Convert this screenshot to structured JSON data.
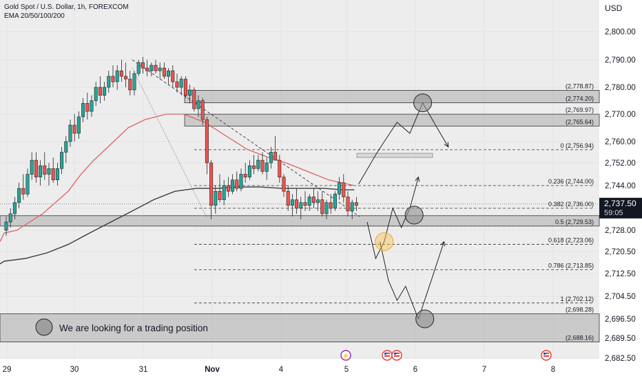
{
  "header": {
    "symbol": "Gold Spot / U.S. Dollar, 1h, FOREXCOM",
    "indicator": "EMA 20/50/100/200"
  },
  "price_axis": {
    "currency": "USD",
    "current_price": "2,737.50",
    "countdown": "59:05"
  },
  "colors": {
    "background": "#ffffff",
    "plot_bg": "#ededed",
    "bull": "#26a69a",
    "bear": "#ef5350",
    "ema_fast": "#e06060",
    "ema_slow": "#3a3a3a",
    "zone": "#bdbdbd",
    "highlight": "#f6c451"
  },
  "annotations": {
    "note": "We are looking for a trading position"
  },
  "chart_data": {
    "type": "candlestick",
    "title": "Gold Spot / U.S. Dollar, 1h, FOREXCOM",
    "x_tick_labels": [
      "29",
      "30",
      "31",
      "Nov",
      "4",
      "5",
      "6",
      "7",
      "8"
    ],
    "y_ticks": [
      2682.5,
      2689.5,
      2696.5,
      2704.5,
      2712.5,
      2720.5,
      2728.0,
      2736.0,
      2744.0,
      2752.0,
      2760.0,
      2770.0,
      2780.0,
      2790.0,
      2800.0
    ],
    "y_tick_labels": [
      "2,682.50",
      "2,689.50",
      "2,696.50",
      "2,704.50",
      "2,712.50",
      "2,720.50",
      "2,728.00",
      "2,736.00",
      "2,744.00",
      "2,752.00",
      "2,760.00",
      "2,770.00",
      "2,780.00",
      "2,790.00",
      "2,800.00"
    ],
    "ylim": [
      2680,
      2806
    ],
    "current_price": 2737.5,
    "level_labels": [
      {
        "text": "(2,778.87)",
        "price": 2778.87
      },
      {
        "text": "(2,774.20)",
        "price": 2774.2
      },
      {
        "text": "(2,769.97)",
        "price": 2769.97
      },
      {
        "text": "(2,765.64)",
        "price": 2765.64
      },
      {
        "text": "0 (2,756.94)",
        "price": 2756.94
      },
      {
        "text": "0.236 (2,744.00)",
        "price": 2744.0
      },
      {
        "text": "0.382 (2,736.00)",
        "price": 2736.0
      },
      {
        "text": "0.5 (2,729.53)",
        "price": 2729.53
      },
      {
        "text": "0.618 (2,723.06)",
        "price": 2723.06
      },
      {
        "text": "0.786 (2,713.85)",
        "price": 2713.85
      },
      {
        "text": "1 (2,702.12)",
        "price": 2702.12
      },
      {
        "text": "(2,698.28)",
        "price": 2698.28
      },
      {
        "text": "(2,688.16)",
        "price": 2688.16
      }
    ],
    "zones": [
      {
        "from": 2774.2,
        "to": 2778.87
      },
      {
        "from": 2765.64,
        "to": 2769.97
      },
      {
        "from": 2729.53,
        "to": 2733.3
      },
      {
        "from": 2688.16,
        "to": 2698.28
      }
    ],
    "candles": [
      [
        2728,
        2733,
        2726,
        2731
      ],
      [
        2731,
        2736,
        2729,
        2734
      ],
      [
        2734,
        2740,
        2732,
        2738
      ],
      [
        2738,
        2745,
        2736,
        2743
      ],
      [
        2743,
        2748,
        2739,
        2741
      ],
      [
        2741,
        2750,
        2740,
        2748
      ],
      [
        2748,
        2756,
        2746,
        2753
      ],
      [
        2753,
        2756,
        2745,
        2747
      ],
      [
        2747,
        2753,
        2744,
        2751
      ],
      [
        2751,
        2756,
        2746,
        2748
      ],
      [
        2748,
        2752,
        2744,
        2750
      ],
      [
        2750,
        2754,
        2745,
        2746
      ],
      [
        2746,
        2752,
        2744,
        2750
      ],
      [
        2750,
        2758,
        2748,
        2756
      ],
      [
        2756,
        2762,
        2752,
        2760
      ],
      [
        2760,
        2768,
        2758,
        2766
      ],
      [
        2766,
        2770,
        2760,
        2763
      ],
      [
        2763,
        2771,
        2761,
        2769
      ],
      [
        2769,
        2776,
        2767,
        2774
      ],
      [
        2774,
        2778,
        2768,
        2771
      ],
      [
        2771,
        2777,
        2769,
        2775
      ],
      [
        2775,
        2782,
        2773,
        2780
      ],
      [
        2780,
        2784,
        2774,
        2777
      ],
      [
        2777,
        2782,
        2775,
        2780
      ],
      [
        2780,
        2786,
        2778,
        2784
      ],
      [
        2784,
        2788,
        2780,
        2782
      ],
      [
        2782,
        2788,
        2779,
        2786
      ],
      [
        2786,
        2790,
        2782,
        2784
      ],
      [
        2784,
        2789,
        2780,
        2783
      ],
      [
        2783,
        2786,
        2777,
        2779
      ],
      [
        2779,
        2786,
        2777,
        2785
      ],
      [
        2785,
        2790,
        2784,
        2789
      ],
      [
        2789,
        2791,
        2785,
        2787
      ],
      [
        2787,
        2790,
        2784,
        2786
      ],
      [
        2786,
        2789,
        2784,
        2788
      ],
      [
        2788,
        2790,
        2785,
        2786
      ],
      [
        2786,
        2789,
        2783,
        2787
      ],
      [
        2787,
        2789,
        2783,
        2784
      ],
      [
        2784,
        2787,
        2781,
        2786
      ],
      [
        2786,
        2788,
        2780,
        2782
      ],
      [
        2782,
        2785,
        2778,
        2780
      ],
      [
        2780,
        2784,
        2777,
        2783
      ],
      [
        2783,
        2784,
        2776,
        2777
      ],
      [
        2777,
        2781,
        2774,
        2779
      ],
      [
        2779,
        2780,
        2771,
        2772
      ],
      [
        2772,
        2777,
        2769,
        2775
      ],
      [
        2775,
        2776,
        2766,
        2768
      ],
      [
        2768,
        2769,
        2748,
        2752
      ],
      [
        2752,
        2753,
        2732,
        2737
      ],
      [
        2737,
        2744,
        2734,
        2742
      ],
      [
        2742,
        2748,
        2738,
        2739
      ],
      [
        2739,
        2746,
        2737,
        2744
      ],
      [
        2744,
        2747,
        2740,
        2742
      ],
      [
        2742,
        2748,
        2741,
        2746
      ],
      [
        2746,
        2749,
        2742,
        2743
      ],
      [
        2743,
        2750,
        2742,
        2748
      ],
      [
        2748,
        2752,
        2745,
        2747
      ],
      [
        2747,
        2753,
        2746,
        2751
      ],
      [
        2751,
        2755,
        2748,
        2750
      ],
      [
        2750,
        2755,
        2749,
        2753
      ],
      [
        2753,
        2756,
        2748,
        2749
      ],
      [
        2749,
        2754,
        2746,
        2752
      ],
      [
        2752,
        2758,
        2750,
        2756
      ],
      [
        2756,
        2762,
        2754,
        2753
      ],
      [
        2753,
        2755,
        2745,
        2747
      ],
      [
        2747,
        2748,
        2740,
        2742
      ],
      [
        2742,
        2744,
        2735,
        2737
      ],
      [
        2737,
        2741,
        2733,
        2739
      ],
      [
        2739,
        2743,
        2734,
        2736
      ],
      [
        2736,
        2740,
        2732,
        2738
      ],
      [
        2738,
        2742,
        2735,
        2737
      ],
      [
        2737,
        2741,
        2735,
        2740
      ],
      [
        2740,
        2743,
        2736,
        2738
      ],
      [
        2738,
        2742,
        2735,
        2739
      ],
      [
        2739,
        2742,
        2733,
        2734
      ],
      [
        2734,
        2739,
        2732,
        2738
      ],
      [
        2738,
        2741,
        2734,
        2736
      ],
      [
        2736,
        2742,
        2735,
        2741
      ],
      [
        2741,
        2747,
        2739,
        2745
      ],
      [
        2745,
        2748,
        2738,
        2740
      ],
      [
        2740,
        2742,
        2733,
        2735
      ],
      [
        2735,
        2739,
        2732,
        2738
      ],
      [
        2738,
        2740,
        2735,
        2737
      ]
    ],
    "ema_fast": [
      [
        2727,
        0
      ],
      [
        2728,
        3
      ],
      [
        2731,
        6
      ],
      [
        2734,
        9
      ],
      [
        2738,
        12
      ],
      [
        2742,
        15
      ],
      [
        2748,
        18
      ],
      [
        2753,
        21
      ],
      [
        2759,
        25
      ],
      [
        2765,
        29
      ],
      [
        2768,
        33
      ],
      [
        2770,
        38
      ],
      [
        2770,
        42
      ],
      [
        2767,
        47
      ],
      [
        2762,
        52
      ],
      [
        2757,
        57
      ],
      [
        2754,
        62
      ],
      [
        2752,
        66
      ],
      [
        2749,
        71
      ],
      [
        2746,
        76
      ],
      [
        2745,
        79
      ],
      [
        2744,
        82
      ]
    ],
    "ema_slow": [
      [
        2717,
        0
      ],
      [
        2718,
        5
      ],
      [
        2720,
        10
      ],
      [
        2723,
        15
      ],
      [
        2727,
        20
      ],
      [
        2731,
        25
      ],
      [
        2735,
        30
      ],
      [
        2739,
        35
      ],
      [
        2742,
        40
      ],
      [
        2743,
        45
      ],
      [
        2743,
        50
      ],
      [
        2743.5,
        55
      ],
      [
        2743.5,
        60
      ],
      [
        2743,
        65
      ],
      [
        2743,
        70
      ],
      [
        2743,
        75
      ],
      [
        2742.5,
        79
      ],
      [
        2742.5,
        82
      ]
    ],
    "projection": {
      "path_up": [
        [
          83,
          2744.5
        ],
        [
          87,
          2755
        ],
        [
          89,
          2760
        ],
        [
          92,
          2767
        ],
        [
          95,
          2763
        ],
        [
          98,
          2774.2
        ],
        [
          101,
          2766
        ],
        [
          104,
          2758
        ]
      ],
      "path_mid_a": [
        [
          85,
          2731
        ],
        [
          87,
          2718
        ],
        [
          89,
          2724
        ],
        [
          91,
          2736
        ],
        [
          93,
          2729
        ],
        [
          95,
          2736
        ],
        [
          97,
          2747
        ]
      ],
      "path_low_a": [
        [
          88,
          2724
        ],
        [
          90,
          2710
        ],
        [
          92,
          2703
        ],
        [
          94,
          2708
        ],
        [
          97,
          2696.5
        ],
        [
          100,
          2710
        ],
        [
          103,
          2724
        ]
      ],
      "circle_marks": [
        [
          98,
          2774.2
        ],
        [
          96,
          2733.5
        ],
        [
          98.5,
          2696.5
        ]
      ],
      "highlight_mark": [
        89,
        2724
      ]
    }
  }
}
